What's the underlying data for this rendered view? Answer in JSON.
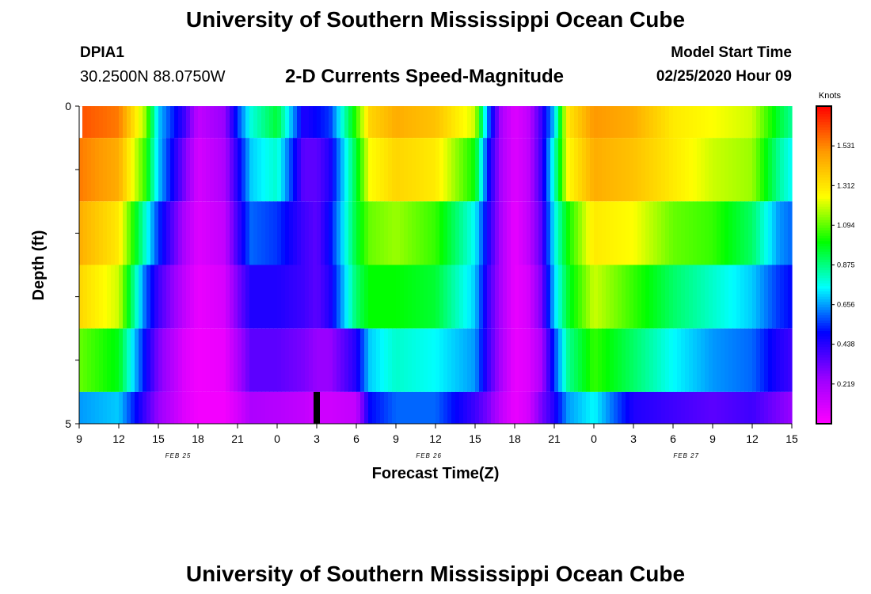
{
  "header": {
    "title": "University of Southern Mississippi Ocean Cube",
    "station": "DPIA1",
    "coords": "30.2500N 88.0750W",
    "subtitle": "2-D Currents Speed-Magnitude",
    "model_start_label": "Model Start Time",
    "model_start_value": "02/25/2020 Hour 09"
  },
  "footer": {
    "title": "University of Southern Mississippi Ocean Cube"
  },
  "chart_data": {
    "type": "heatmap",
    "xlabel": "Forecast Time(Z)",
    "ylabel": "Depth (ft)",
    "x_tick_labels": [
      "9",
      "12",
      "15",
      "18",
      "21",
      "0",
      "3",
      "6",
      "9",
      "12",
      "15",
      "18",
      "21",
      "0",
      "3",
      "6",
      "9",
      "12",
      "15"
    ],
    "x_hours": [
      0,
      3,
      6,
      9,
      12,
      15,
      18,
      21,
      24,
      27,
      30,
      33,
      36,
      39,
      42,
      45,
      48,
      51,
      54
    ],
    "date_labels": [
      {
        "text": "FEB 25",
        "hour": 7.5
      },
      {
        "text": "FEB 26",
        "hour": 26.5
      },
      {
        "text": "FEB 27",
        "hour": 46
      }
    ],
    "y_tick_labels": [
      "0",
      "5"
    ],
    "ylim": [
      0,
      5
    ],
    "colorbar": {
      "title": "Knots",
      "ticks": [
        "1.531",
        "1.312",
        "1.094",
        "0.875",
        "0.656",
        "0.438",
        "0.219"
      ],
      "range": [
        0.0,
        1.75
      ],
      "palette": [
        "#ff00ff",
        "#9900ff",
        "#0000ff",
        "#00ffff",
        "#00ff00",
        "#ffff00",
        "#ff9900",
        "#ff0000"
      ]
    },
    "depth_layers": [
      "0-0.5",
      "0.5-1.5",
      "1.5-2.5",
      "2.5-3.5",
      "3.5-4.5",
      "4.5-5"
    ],
    "keyframes": [
      [
        0,
        1.62,
        1.55,
        1.45,
        1.35,
        1.1,
        0.65
      ],
      [
        3,
        1.55,
        1.45,
        1.3,
        1.2,
        0.98,
        0.7
      ],
      [
        5,
        1.15,
        1.05,
        0.8,
        0.6,
        0.5,
        0.4
      ],
      [
        6,
        0.7,
        0.7,
        0.55,
        0.4,
        0.3,
        0.25
      ],
      [
        8,
        0.4,
        0.3,
        0.2,
        0.15,
        0.08,
        0.08
      ],
      [
        9,
        0.15,
        0.1,
        0.08,
        0.05,
        0.03,
        0.03
      ],
      [
        11,
        0.25,
        0.2,
        0.15,
        0.1,
        0.05,
        0.03
      ],
      [
        12,
        0.55,
        0.45,
        0.4,
        0.3,
        0.2,
        0.1
      ],
      [
        13,
        0.78,
        0.7,
        0.6,
        0.45,
        0.35,
        0.2
      ],
      [
        15,
        0.95,
        0.8,
        0.55,
        0.45,
        0.35,
        0.18
      ],
      [
        17,
        0.45,
        0.35,
        0.4,
        0.4,
        0.3,
        0.15
      ],
      [
        18,
        0.5,
        0.35,
        0.35,
        0.35,
        0.25,
        0.12
      ],
      [
        19,
        0.55,
        0.45,
        0.5,
        0.45,
        0.25,
        0.12
      ],
      [
        21,
        1.05,
        0.95,
        0.95,
        0.9,
        0.45,
        0.15
      ],
      [
        22,
        1.35,
        1.25,
        1.1,
        1.0,
        0.7,
        0.5
      ],
      [
        24,
        1.45,
        1.35,
        1.15,
        1.0,
        0.8,
        0.6
      ],
      [
        27,
        1.4,
        1.3,
        1.05,
        0.95,
        0.75,
        0.6
      ],
      [
        30,
        1.2,
        1.0,
        0.75,
        0.7,
        0.65,
        0.4
      ],
      [
        31,
        0.6,
        0.5,
        0.45,
        0.4,
        0.4,
        0.3
      ],
      [
        32,
        0.2,
        0.2,
        0.2,
        0.2,
        0.2,
        0.15
      ],
      [
        33,
        0.08,
        0.08,
        0.05,
        0.05,
        0.05,
        0.05
      ],
      [
        34,
        0.15,
        0.15,
        0.15,
        0.1,
        0.08,
        0.1
      ],
      [
        35,
        0.4,
        0.4,
        0.35,
        0.3,
        0.2,
        0.3
      ],
      [
        36,
        0.7,
        0.8,
        0.75,
        0.7,
        0.55,
        0.45
      ],
      [
        37,
        1.3,
        1.25,
        1.0,
        0.95,
        0.85,
        0.65
      ],
      [
        39,
        1.5,
        1.45,
        1.3,
        1.2,
        1.05,
        0.75
      ],
      [
        42,
        1.45,
        1.4,
        1.25,
        1.05,
        0.9,
        0.45
      ],
      [
        45,
        1.3,
        1.3,
        1.1,
        0.9,
        0.75,
        0.4
      ],
      [
        48,
        1.25,
        1.2,
        1.05,
        0.8,
        0.65,
        0.35
      ],
      [
        51,
        1.2,
        1.15,
        0.9,
        0.7,
        0.6,
        0.4
      ],
      [
        53,
        0.95,
        0.85,
        0.65,
        0.55,
        0.45,
        0.3
      ],
      [
        54,
        0.85,
        0.75,
        0.6,
        0.5,
        0.4,
        0.25
      ]
    ],
    "gap_cells": [
      {
        "hour": 18,
        "layer": 5,
        "color": "#000000"
      }
    ]
  }
}
